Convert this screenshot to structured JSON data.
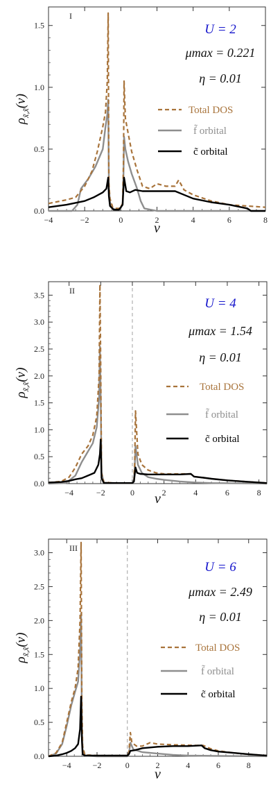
{
  "figure": {
    "colors": {
      "total": "#A8733A",
      "f": "#8E8E8E",
      "c": "#000000",
      "u_label": "#1515CC",
      "zero_line": "#A0A0A0"
    }
  },
  "chart_data": [
    {
      "type": "line",
      "panel_label": "I",
      "xlabel": "ν",
      "ylabel_main": "ρ",
      "ylabel_sub": "x̃,x̃",
      "ylabel_arg": "(ν)",
      "xlim": [
        -4,
        8
      ],
      "ylim": [
        0,
        1.65
      ],
      "xticks": [
        -4,
        -2,
        0,
        2,
        4,
        6,
        8
      ],
      "xtick_labels": [
        "−4",
        "−2",
        "0",
        "2",
        "4",
        "6",
        "8"
      ],
      "yticks": [
        0,
        0.5,
        1.0,
        1.5
      ],
      "ytick_labels": [
        "0.0",
        "0.5",
        "1.0",
        "1.5"
      ],
      "zero_line": false,
      "annotations": {
        "u_label": "U = 2",
        "mu_label": "μmax = 0.221",
        "eta_label": "η = 0.01"
      },
      "legend": [
        "Total DOS",
        "f̃ orbital",
        "c̃ orbital"
      ],
      "series": [
        {
          "name": "Total DOS",
          "x": [
            -4,
            -3,
            -2.5,
            -2,
            -1.6,
            -1.3,
            -1.0,
            -0.85,
            -0.75,
            -0.7,
            -0.66,
            -0.6,
            -0.45,
            -0.3,
            -0.05,
            0.1,
            0.15,
            0.18,
            0.25,
            0.4,
            0.6,
            0.9,
            1.2,
            1.6,
            2,
            2.5,
            3,
            3.2,
            3.5,
            4,
            5,
            6,
            7,
            8
          ],
          "y": [
            0.06,
            0.09,
            0.11,
            0.2,
            0.32,
            0.48,
            0.68,
            0.8,
            1.05,
            1.6,
            0.22,
            0.1,
            0.03,
            0.02,
            0.02,
            0.06,
            0.4,
            1.05,
            0.75,
            0.63,
            0.48,
            0.33,
            0.2,
            0.18,
            0.22,
            0.2,
            0.2,
            0.25,
            0.17,
            0.13,
            0.08,
            0.05,
            0.04,
            0.03
          ]
        },
        {
          "name": "f̃ orbital",
          "x": [
            -4,
            -2.7,
            -2.4,
            -2.2,
            -1.8,
            -1.4,
            -1.0,
            -0.85,
            -0.75,
            -0.7,
            -0.66,
            -0.6,
            -0.45,
            -0.3,
            -0.05,
            0.1,
            0.15,
            0.18,
            0.25,
            0.4,
            0.6,
            0.9,
            1.1,
            1.3,
            2,
            8
          ],
          "y": [
            0,
            0,
            0.05,
            0.18,
            0.26,
            0.36,
            0.5,
            0.68,
            0.78,
            0.9,
            0.2,
            0.07,
            0.02,
            0.01,
            0.01,
            0.05,
            0.3,
            0.6,
            0.5,
            0.4,
            0.3,
            0.18,
            0.08,
            0.02,
            0,
            0
          ]
        },
        {
          "name": "c̃ orbital",
          "x": [
            -4,
            -3,
            -2,
            -1.5,
            -1.0,
            -0.8,
            -0.7,
            -0.66,
            -0.6,
            -0.4,
            -0.1,
            0.1,
            0.18,
            0.3,
            0.5,
            0.8,
            1.2,
            2,
            2.5,
            3,
            3.5,
            4,
            5,
            6,
            7,
            7.2,
            8
          ],
          "y": [
            0.03,
            0.05,
            0.08,
            0.11,
            0.15,
            0.18,
            0.27,
            0.12,
            0.04,
            0.01,
            0.01,
            0.05,
            0.27,
            0.16,
            0.15,
            0.17,
            0.16,
            0.16,
            0.16,
            0.16,
            0.13,
            0.1,
            0.07,
            0.05,
            0.02,
            0,
            0
          ]
        }
      ]
    },
    {
      "type": "line",
      "panel_label": "II",
      "xlabel": "ν",
      "ylabel_main": "ρ",
      "ylabel_sub": "x̃,x̃",
      "ylabel_arg": "(ν)",
      "xlim": [
        -5.3,
        8.5
      ],
      "ylim": [
        0,
        3.75
      ],
      "xticks": [
        -4,
        -2,
        0,
        2,
        4,
        6,
        8
      ],
      "xtick_labels": [
        "−4",
        "−2",
        "0",
        "2",
        "4",
        "6",
        "8"
      ],
      "yticks": [
        0,
        0.5,
        1.0,
        1.5,
        2.0,
        2.5,
        3.0,
        3.5
      ],
      "ytick_labels": [
        "0.0",
        "0.5",
        "1.0",
        "1.5",
        "2.0",
        "2.5",
        "3.0",
        "3.5"
      ],
      "zero_line": true,
      "annotations": {
        "u_label": "U = 4",
        "mu_label": "μmax = 1.54",
        "eta_label": "η = 0.01"
      },
      "legend": [
        "Total DOS",
        "f̃ orbital",
        "c̃ orbital"
      ],
      "series": [
        {
          "name": "Total DOS",
          "x": [
            -5.3,
            -4.5,
            -4,
            -3.6,
            -3.2,
            -2.8,
            -2.5,
            -2.25,
            -2.1,
            -2.05,
            -2.0,
            -1.95,
            -1.8,
            -1,
            0,
            0.1,
            0.15,
            0.2,
            0.35,
            0.6,
            1,
            1.5,
            2,
            3,
            3.7,
            3.9,
            4.5,
            5,
            6,
            7,
            8,
            8.5
          ],
          "y": [
            0.02,
            0.04,
            0.12,
            0.3,
            0.55,
            0.7,
            0.9,
            1.25,
            2.0,
            3.7,
            2.2,
            0.2,
            0.02,
            0.01,
            0.01,
            0.05,
            0.4,
            1.35,
            0.55,
            0.35,
            0.25,
            0.2,
            0.18,
            0.18,
            0.18,
            0.13,
            0.11,
            0.09,
            0.06,
            0.04,
            0.02,
            0.01
          ]
        },
        {
          "name": "f̃ orbital",
          "x": [
            -5.3,
            -4.2,
            -3.6,
            -3.2,
            -2.8,
            -2.5,
            -2.25,
            -2.1,
            -2.05,
            -2.0,
            -1.95,
            -1.8,
            -1,
            0,
            0.1,
            0.15,
            0.2,
            0.35,
            0.6,
            1,
            1.5,
            2,
            3,
            4,
            5,
            8.5
          ],
          "y": [
            0,
            0.01,
            0.15,
            0.4,
            0.6,
            0.75,
            1.05,
            1.6,
            2.55,
            1.6,
            0.2,
            0.02,
            0.01,
            0.01,
            0.04,
            0.3,
            0.7,
            0.35,
            0.2,
            0.12,
            0.09,
            0.07,
            0.04,
            0.02,
            0.01,
            0
          ]
        },
        {
          "name": "c̃ orbital",
          "x": [
            -5.3,
            -4.5,
            -4,
            -3.6,
            -3.2,
            -2.8,
            -2.4,
            -2.15,
            -2.05,
            -2.0,
            -1.95,
            -1.8,
            -1,
            0,
            0.1,
            0.2,
            0.3,
            0.5,
            1,
            2,
            3,
            3.7,
            3.9,
            4.5,
            5,
            6,
            7,
            8,
            8.5
          ],
          "y": [
            0.02,
            0.03,
            0.05,
            0.08,
            0.1,
            0.15,
            0.2,
            0.35,
            0.55,
            0.82,
            0.1,
            0.01,
            0.01,
            0.01,
            0.04,
            0.3,
            0.2,
            0.18,
            0.17,
            0.17,
            0.17,
            0.18,
            0.13,
            0.11,
            0.09,
            0.06,
            0.04,
            0.02,
            0.01
          ]
        }
      ]
    },
    {
      "type": "line",
      "panel_label": "III",
      "xlabel": "ν",
      "ylabel_main": "ρ",
      "ylabel_sub": "x̃,x̃",
      "ylabel_arg": "(ν)",
      "xlim": [
        -5.2,
        9.2
      ],
      "ylim": [
        0,
        3.2
      ],
      "xticks": [
        -4,
        -2,
        0,
        2,
        4,
        6,
        8
      ],
      "xtick_labels": [
        "−4",
        "−2",
        "0",
        "2",
        "4",
        "6",
        "8"
      ],
      "yticks": [
        0,
        0.5,
        1.0,
        1.5,
        2.0,
        2.5,
        3.0
      ],
      "ytick_labels": [
        "0.0",
        "0.5",
        "1.0",
        "1.5",
        "2.0",
        "2.5",
        "3.0"
      ],
      "zero_line": true,
      "annotations": {
        "u_label": "U  = 6",
        "mu_label": "μmax = 2.49",
        "eta_label": "η = 0.01"
      },
      "legend": [
        "Total DOS",
        "f̃ orbital",
        "c̃ orbital"
      ],
      "series": [
        {
          "name": "Total DOS",
          "x": [
            -5.2,
            -4.7,
            -4.3,
            -4,
            -3.7,
            -3.45,
            -3.25,
            -3.12,
            -3.05,
            -3.0,
            -2.95,
            -2.8,
            -2,
            -1,
            0,
            0.1,
            0.2,
            0.3,
            0.6,
            1,
            1.5,
            2,
            3,
            4.5,
            5,
            5.5,
            6,
            7,
            8,
            9.2
          ],
          "y": [
            0,
            0.05,
            0.2,
            0.5,
            0.8,
            1.0,
            1.3,
            2.0,
            3.15,
            0.8,
            0.15,
            0.02,
            0.01,
            0.01,
            0.01,
            0.05,
            0.35,
            0.2,
            0.15,
            0.15,
            0.2,
            0.18,
            0.17,
            0.16,
            0.16,
            0.11,
            0.08,
            0.05,
            0.03,
            0.01
          ]
        },
        {
          "name": "f̃ orbital",
          "x": [
            -5.2,
            -4.7,
            -4.3,
            -4,
            -3.7,
            -3.45,
            -3.25,
            -3.12,
            -3.05,
            -3.0,
            -2.95,
            -2.8,
            -2,
            0,
            0.1,
            0.2,
            0.4,
            1,
            2,
            3,
            4,
            6,
            9.2
          ],
          "y": [
            0,
            0.04,
            0.18,
            0.45,
            0.75,
            0.95,
            1.1,
            1.55,
            2.1,
            0.5,
            0.1,
            0.01,
            0,
            0,
            0.03,
            0.2,
            0.1,
            0.06,
            0.04,
            0.02,
            0.01,
            0.005,
            0
          ]
        },
        {
          "name": "c̃ orbital",
          "x": [
            -5.2,
            -4.7,
            -4.3,
            -4,
            -3.7,
            -3.45,
            -3.25,
            -3.12,
            -3.05,
            -3.0,
            -2.95,
            -2.8,
            -2,
            -1,
            0,
            0.1,
            0.2,
            0.5,
            1,
            2,
            3,
            4,
            4.9,
            5.1,
            5.5,
            6,
            7,
            8,
            9.2
          ],
          "y": [
            0,
            0.01,
            0.03,
            0.05,
            0.08,
            0.12,
            0.18,
            0.4,
            0.88,
            0.25,
            0.03,
            0.01,
            0.01,
            0.01,
            0.01,
            0.03,
            0.08,
            0.09,
            0.12,
            0.14,
            0.15,
            0.15,
            0.16,
            0.12,
            0.09,
            0.07,
            0.05,
            0.03,
            0.01
          ]
        }
      ]
    }
  ]
}
